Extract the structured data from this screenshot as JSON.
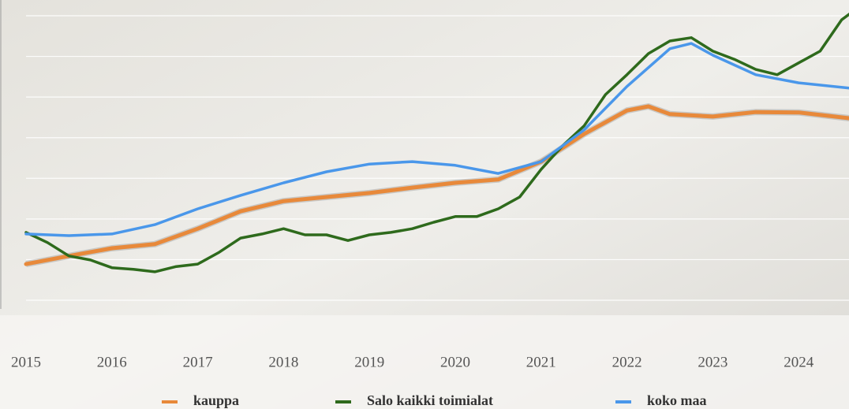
{
  "chart_data": {
    "type": "line",
    "xlim": [
      2015,
      2024.59
    ],
    "xticks": [
      2015,
      2016,
      2017,
      2018,
      2019,
      2020,
      2021,
      2022,
      2023,
      2024
    ],
    "ylim": [
      0,
      7
    ],
    "yticks": [
      0,
      1,
      2,
      3,
      4,
      5,
      6,
      7
    ],
    "grid": true,
    "series": [
      {
        "name": "kauppa",
        "color": "#e8893a",
        "x": [
          2015,
          2015.5,
          2016,
          2016.5,
          2017,
          2017.5,
          2018,
          2018.5,
          2019,
          2019.5,
          2020,
          2020.5,
          2021,
          2021.5,
          2022,
          2022.25,
          2022.5,
          2023,
          2023.5,
          2024,
          2024.59
        ],
        "values": [
          0.89,
          1.09,
          1.28,
          1.38,
          1.76,
          2.19,
          2.44,
          2.54,
          2.64,
          2.77,
          2.89,
          2.97,
          3.41,
          4.09,
          4.67,
          4.77,
          4.58,
          4.52,
          4.63,
          4.62,
          4.48
        ]
      },
      {
        "name": "Salo kaikki toimialat",
        "color": "#2e6a1c",
        "x": [
          2015,
          2015.25,
          2015.5,
          2015.75,
          2016,
          2016.25,
          2016.5,
          2016.75,
          2017,
          2017.25,
          2017.5,
          2017.75,
          2018,
          2018.25,
          2018.5,
          2018.75,
          2019,
          2019.25,
          2019.5,
          2019.75,
          2020,
          2020.25,
          2020.5,
          2020.75,
          2021,
          2021.25,
          2021.5,
          2021.75,
          2022,
          2022.25,
          2022.5,
          2022.75,
          2023,
          2023.25,
          2023.5,
          2023.75,
          2024,
          2024.25,
          2024.5,
          2024.59
        ],
        "values": [
          1.67,
          1.42,
          1.09,
          0.99,
          0.8,
          0.76,
          0.7,
          0.83,
          0.89,
          1.18,
          1.53,
          1.63,
          1.76,
          1.61,
          1.61,
          1.47,
          1.61,
          1.67,
          1.76,
          1.92,
          2.06,
          2.06,
          2.25,
          2.54,
          3.22,
          3.8,
          4.29,
          5.06,
          5.55,
          6.07,
          6.38,
          6.46,
          6.13,
          5.93,
          5.68,
          5.55,
          5.84,
          6.13,
          6.9,
          7.04
        ]
      },
      {
        "name": "koko maa",
        "color": "#4a97ea",
        "x": [
          2015,
          2015.5,
          2016,
          2016.5,
          2017,
          2017.5,
          2018,
          2018.5,
          2019,
          2019.5,
          2020,
          2020.5,
          2021,
          2021.5,
          2022,
          2022.5,
          2022.75,
          2023,
          2023.5,
          2024,
          2024.59
        ],
        "values": [
          1.63,
          1.59,
          1.63,
          1.86,
          2.25,
          2.58,
          2.89,
          3.16,
          3.35,
          3.41,
          3.32,
          3.12,
          3.41,
          4.19,
          5.26,
          6.19,
          6.32,
          6.03,
          5.55,
          5.35,
          5.22
        ]
      }
    ]
  }
}
